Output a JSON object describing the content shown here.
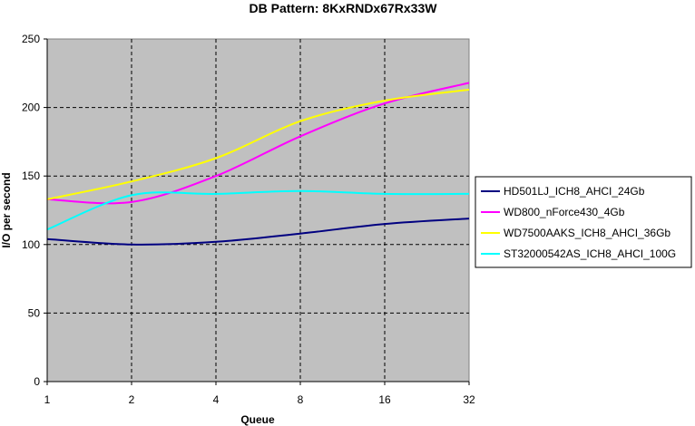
{
  "chart_data": {
    "type": "line",
    "title": "DB Pattern: 8KxRNDx67Rx33W",
    "xlabel": "Queue",
    "ylabel": "I/O per second",
    "x_scale": "log2",
    "x": [
      1,
      2,
      4,
      8,
      16,
      32
    ],
    "x_tick_labels": [
      "1",
      "2",
      "4",
      "8",
      "16",
      "32"
    ],
    "ylim": [
      0,
      250
    ],
    "y_ticks": [
      0,
      50,
      100,
      150,
      200,
      250
    ],
    "grid": true,
    "legend_position": "right",
    "series": [
      {
        "name": "HD501LJ_ICH8_AHCI_24Gb",
        "color": "#000080",
        "values": [
          104,
          100,
          102,
          108,
          115,
          119
        ]
      },
      {
        "name": "WD800_nForce430_4Gb",
        "color": "#ff00ff",
        "values": [
          133,
          131,
          150,
          179,
          203,
          218
        ]
      },
      {
        "name": "WD7500AAKS_ICH8_AHCI_36Gb",
        "color": "#ffff00",
        "values": [
          133,
          146,
          163,
          190,
          205,
          213
        ]
      },
      {
        "name": "ST32000542AS_ICH8_AHCI_100G",
        "color": "#00ffff",
        "values": [
          111,
          136,
          137,
          139,
          137,
          137
        ]
      }
    ]
  }
}
